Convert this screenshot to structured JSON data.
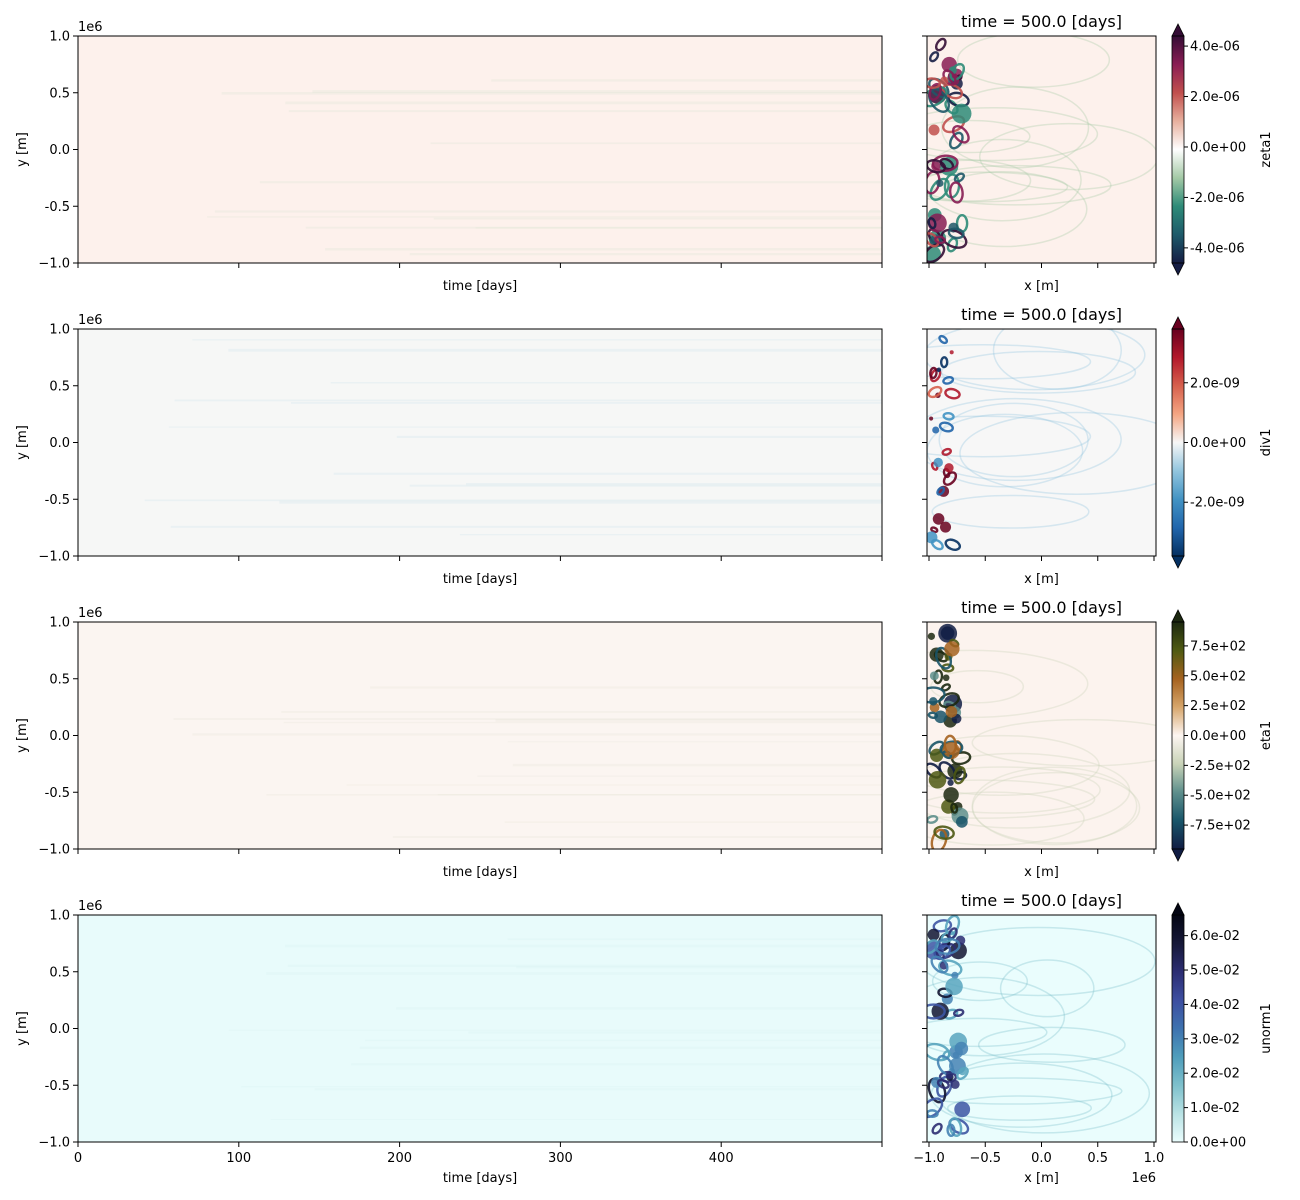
{
  "figure": {
    "background": "#ffffff"
  },
  "chart_data": [
    {
      "id": "zeta1",
      "type": "heatmap",
      "colorbar_label": "zeta1",
      "cmap": "curl",
      "colorbar_stops": [
        "#151d44",
        "#1e5a6a",
        "#2e8b78",
        "#a4c9a6",
        "#ffffff",
        "#e7b09e",
        "#c1504e",
        "#8a1d54",
        "#340d35"
      ],
      "colorbar_range": [
        -4.6e-06,
        4.4e-06
      ],
      "colorbar_ticks": [
        {
          "value": 4e-06,
          "label": "4.0e-06"
        },
        {
          "value": 2e-06,
          "label": "2.0e-06"
        },
        {
          "value": 0.0,
          "label": "0.0e+00"
        },
        {
          "value": -2e-06,
          "label": "-2.0e-06"
        },
        {
          "value": -4e-06,
          "label": "-4.0e-06"
        }
      ],
      "colorbar_extend": "both",
      "hovmoller": {
        "fill": "#fdf1ec",
        "xlabel": "time [days]",
        "ylabel": "y [m]",
        "ylim": [
          -1.0,
          1.0
        ],
        "y_offset_text": "1e6",
        "yticks": [
          {
            "value": 1.0,
            "label": "1.0"
          },
          {
            "value": 0.5,
            "label": "0.5"
          },
          {
            "value": 0.0,
            "label": "0.0"
          },
          {
            "value": -0.5,
            "label": "-0.5"
          },
          {
            "value": -1.0,
            "label": "−1.0"
          }
        ]
      },
      "snapshot": {
        "title": "time = 500.0 [days]",
        "xlabel": "x [m]",
        "fill": "#fdf1ec"
      }
    },
    {
      "id": "div1",
      "type": "heatmap",
      "colorbar_label": "div1",
      "cmap": "RdBu_r",
      "colorbar_stops": [
        "#053061",
        "#2166ac",
        "#4393c3",
        "#92c5de",
        "#f7f7f7",
        "#f4a582",
        "#d6604d",
        "#b2182b",
        "#67001f"
      ],
      "colorbar_range": [
        -3.8e-09,
        3.8e-09
      ],
      "colorbar_ticks": [
        {
          "value": 2e-09,
          "label": "2.0e-09"
        },
        {
          "value": 0.0,
          "label": "0.0e+00"
        },
        {
          "value": -2e-09,
          "label": "-2.0e-09"
        }
      ],
      "colorbar_extend": "both",
      "hovmoller": {
        "fill": "#f6f7f6",
        "xlabel": "time [days]",
        "ylabel": "y [m]",
        "ylim": [
          -1.0,
          1.0
        ],
        "y_offset_text": "1e6",
        "yticks": [
          {
            "value": 1.0,
            "label": "1.0"
          },
          {
            "value": 0.5,
            "label": "0.5"
          },
          {
            "value": 0.0,
            "label": "0.0"
          },
          {
            "value": -0.5,
            "label": "-0.5"
          },
          {
            "value": -1.0,
            "label": "−1.0"
          }
        ]
      },
      "snapshot": {
        "title": "time = 500.0 [days]",
        "xlabel": "x [m]",
        "fill": "#f7f7f7"
      }
    },
    {
      "id": "eta1",
      "type": "heatmap",
      "colorbar_label": "eta1",
      "cmap": "tarn",
      "colorbar_stops": [
        "#111d44",
        "#19566a",
        "#5e8f8c",
        "#c9d3b8",
        "#fdf6f2",
        "#d7a66b",
        "#a5621f",
        "#4f5a12",
        "#1c2810"
      ],
      "colorbar_range": [
        -950,
        950
      ],
      "colorbar_ticks": [
        {
          "value": 750,
          "label": "7.5e+02"
        },
        {
          "value": 500,
          "label": "5.0e+02"
        },
        {
          "value": 250,
          "label": "2.5e+02"
        },
        {
          "value": 0,
          "label": "0.0e+00"
        },
        {
          "value": -250,
          "label": "-2.5e+02"
        },
        {
          "value": -500,
          "label": "-5.0e+02"
        },
        {
          "value": -750,
          "label": "-7.5e+02"
        }
      ],
      "colorbar_extend": "both",
      "hovmoller": {
        "fill": "#fbf5f1",
        "xlabel": "time [days]",
        "ylabel": "y [m]",
        "ylim": [
          -1.0,
          1.0
        ],
        "y_offset_text": "1e6",
        "yticks": [
          {
            "value": 1.0,
            "label": "1.0"
          },
          {
            "value": 0.5,
            "label": "0.5"
          },
          {
            "value": 0.0,
            "label": "0.0"
          },
          {
            "value": -0.5,
            "label": "-0.5"
          },
          {
            "value": -1.0,
            "label": "−1.0"
          }
        ]
      },
      "snapshot": {
        "title": "time = 500.0 [days]",
        "xlabel": "x [m]",
        "fill": "#fcf3ee"
      }
    },
    {
      "id": "unorm1",
      "type": "heatmap",
      "colorbar_label": "unorm1",
      "cmap": "ice_r",
      "colorbar_stops": [
        "#eafdfd",
        "#b9e2e4",
        "#7ec0cc",
        "#4f9dbb",
        "#3e72af",
        "#3d4ea0",
        "#2c2d72",
        "#161838",
        "#040613"
      ],
      "colorbar_range": [
        0.0,
        0.066
      ],
      "colorbar_ticks": [
        {
          "value": 0.06,
          "label": "6.0e-02"
        },
        {
          "value": 0.05,
          "label": "5.0e-02"
        },
        {
          "value": 0.04,
          "label": "4.0e-02"
        },
        {
          "value": 0.03,
          "label": "3.0e-02"
        },
        {
          "value": 0.02,
          "label": "2.0e-02"
        },
        {
          "value": 0.01,
          "label": "1.0e-02"
        },
        {
          "value": 0.0,
          "label": "0.0e+00"
        }
      ],
      "colorbar_extend": "max",
      "hovmoller": {
        "fill": "#e8fbfb",
        "xlabel": "time [days]",
        "ylabel": "y [m]",
        "xlim": [
          0,
          500
        ],
        "xticks": [
          {
            "value": 0,
            "label": "0"
          },
          {
            "value": 100,
            "label": "100"
          },
          {
            "value": 200,
            "label": "200"
          },
          {
            "value": 300,
            "label": "300"
          },
          {
            "value": 400,
            "label": "400"
          }
        ],
        "ylim": [
          -1.0,
          1.0
        ],
        "y_offset_text": "1e6",
        "yticks": [
          {
            "value": 1.0,
            "label": "1.0"
          },
          {
            "value": 0.5,
            "label": "0.5"
          },
          {
            "value": 0.0,
            "label": "0.0"
          },
          {
            "value": -0.5,
            "label": "-0.5"
          },
          {
            "value": -1.0,
            "label": "−1.0"
          }
        ]
      },
      "snapshot": {
        "title": "time = 500.0 [days]",
        "xlabel": "x [m]",
        "fill": "#eafdfd",
        "xlim": [
          -1.0,
          1.0
        ],
        "x_offset_text": "1e6",
        "xticks": [
          {
            "value": -1.0,
            "label": "−1.0"
          },
          {
            "value": -0.5,
            "label": "−0.5"
          },
          {
            "value": 0.0,
            "label": "0.0"
          },
          {
            "value": 0.5,
            "label": "0.5"
          },
          {
            "value": 1.0,
            "label": "1.0"
          }
        ]
      }
    }
  ]
}
